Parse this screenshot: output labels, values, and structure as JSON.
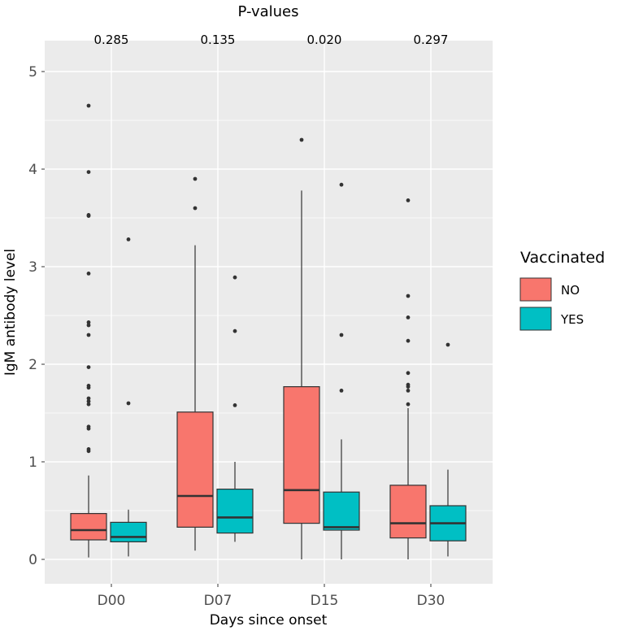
{
  "chart_data": {
    "type": "boxplot",
    "top_title": "P-values",
    "p_values": [
      "0.285",
      "0.135",
      "0.020",
      "0.297"
    ],
    "xlabel": "Days since onset",
    "ylabel": "IgM antibody level",
    "categories": [
      "D00",
      "D07",
      "D15",
      "D30"
    ],
    "ylim": [
      -0.2,
      5.3
    ],
    "yticks": [
      0,
      1,
      2,
      3,
      4,
      5
    ],
    "grid": true,
    "legend": {
      "title": "Vaccinated",
      "placement": "right",
      "entries": [
        "NO",
        "YES"
      ]
    },
    "colors": {
      "NO": "#F8766D",
      "YES": "#00BFC4",
      "panel": "#EBEBEB",
      "outline": "#333333"
    },
    "series": [
      {
        "name": "NO",
        "boxes": [
          {
            "low": 0.02,
            "q1": 0.2,
            "median": 0.3,
            "q3": 0.47,
            "high": 0.86,
            "outliers": [
              4.65,
              3.97,
              3.53,
              3.52,
              2.93,
              2.43,
              2.4,
              2.3,
              1.97,
              1.78,
              1.76,
              1.65,
              1.62,
              1.59,
              1.36,
              1.34,
              1.13,
              1.11
            ]
          },
          {
            "low": 0.09,
            "q1": 0.33,
            "median": 0.65,
            "q3": 1.51,
            "high": 3.22,
            "outliers": [
              3.9,
              3.6
            ]
          },
          {
            "low": 0.0,
            "q1": 0.37,
            "median": 0.71,
            "q3": 1.77,
            "high": 3.78,
            "outliers": [
              4.3
            ]
          },
          {
            "low": 0.0,
            "q1": 0.22,
            "median": 0.37,
            "q3": 0.76,
            "high": 1.55,
            "outliers": [
              3.68,
              2.7,
              2.48,
              2.24,
              1.91,
              1.79,
              1.77,
              1.73,
              1.59
            ]
          }
        ]
      },
      {
        "name": "YES",
        "boxes": [
          {
            "low": 0.03,
            "q1": 0.18,
            "median": 0.23,
            "q3": 0.38,
            "high": 0.51,
            "outliers": [
              3.28,
              1.6
            ]
          },
          {
            "low": 0.18,
            "q1": 0.27,
            "median": 0.43,
            "q3": 0.72,
            "high": 1.0,
            "outliers": [
              2.89,
              2.34,
              1.58
            ]
          },
          {
            "low": 0.0,
            "q1": 0.3,
            "median": 0.33,
            "q3": 0.69,
            "high": 1.23,
            "outliers": [
              3.84,
              2.3,
              1.73
            ]
          },
          {
            "low": 0.03,
            "q1": 0.19,
            "median": 0.37,
            "q3": 0.55,
            "high": 0.92,
            "outliers": [
              2.2
            ]
          }
        ]
      }
    ]
  }
}
